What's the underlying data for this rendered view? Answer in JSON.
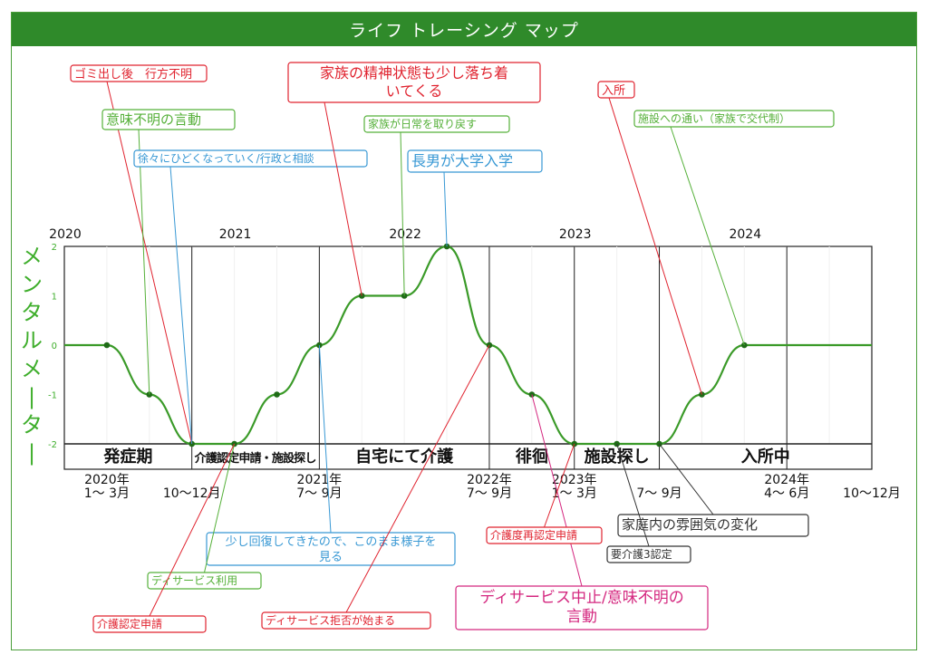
{
  "title": "ライフ トレーシング マップ",
  "colors": {
    "title_bg": "#2f8a2a",
    "series": "#3a9a28",
    "red": "#e0232f",
    "green": "#55b039",
    "blue": "#3898d4",
    "magenta": "#d4277f",
    "dark": "#333333"
  },
  "chart_data": {
    "type": "line",
    "ylabel": "メンタルメーター",
    "ylim": [
      -2,
      2
    ],
    "yticks": [
      2,
      1,
      0,
      -1,
      -2
    ],
    "xlim": [
      0,
      19
    ],
    "years": [
      {
        "label": "2020",
        "x": 0
      },
      {
        "label": "2021",
        "x": 4
      },
      {
        "label": "2022",
        "x": 8
      },
      {
        "label": "2023",
        "x": 12
      },
      {
        "label": "2024",
        "x": 16
      }
    ],
    "year_dividers": [
      3,
      6,
      10,
      12,
      14,
      17
    ],
    "x_tick_labels": [
      {
        "x": 1,
        "lines": [
          "2020年",
          "1～ 3月"
        ]
      },
      {
        "x": 3,
        "lines": [
          "",
          "10～12月"
        ]
      },
      {
        "x": 6,
        "lines": [
          "2021年",
          "7～ 9月"
        ]
      },
      {
        "x": 10,
        "lines": [
          "2022年",
          "7～ 9月"
        ]
      },
      {
        "x": 12,
        "lines": [
          "2023年",
          "1～ 3月"
        ]
      },
      {
        "x": 14,
        "lines": [
          "",
          "7～ 9月"
        ]
      },
      {
        "x": 17,
        "lines": [
          "2024年",
          "4～ 6月"
        ]
      },
      {
        "x": 19,
        "lines": [
          "",
          "10～12月"
        ]
      }
    ],
    "phases": [
      {
        "label": "発症期",
        "from": 0,
        "to": 3
      },
      {
        "label": "介護認定申請・施設探し",
        "from": 3,
        "to": 6
      },
      {
        "label": "自宅にて介護",
        "from": 6,
        "to": 10
      },
      {
        "label": "徘徊",
        "from": 10,
        "to": 12
      },
      {
        "label": "施設探し",
        "from": 12,
        "to": 14
      },
      {
        "label": "入所中",
        "from": 14,
        "to": 19
      }
    ],
    "points": [
      {
        "x": 0,
        "y": 0,
        "marker": false
      },
      {
        "x": 1,
        "y": 0
      },
      {
        "x": 2,
        "y": -1
      },
      {
        "x": 3,
        "y": -2
      },
      {
        "x": 4,
        "y": -2
      },
      {
        "x": 5,
        "y": -1
      },
      {
        "x": 6,
        "y": 0
      },
      {
        "x": 7,
        "y": 1
      },
      {
        "x": 8,
        "y": 1
      },
      {
        "x": 9,
        "y": 2
      },
      {
        "x": 10,
        "y": 0
      },
      {
        "x": 11,
        "y": -1
      },
      {
        "x": 12,
        "y": -2
      },
      {
        "x": 13,
        "y": -2
      },
      {
        "x": 14,
        "y": -2
      },
      {
        "x": 15,
        "y": -1
      },
      {
        "x": 16,
        "y": 0
      },
      {
        "x": 17,
        "y": 0,
        "marker": false
      },
      {
        "x": 18,
        "y": 0,
        "marker": false
      },
      {
        "x": 19,
        "y": 0,
        "marker": false
      }
    ],
    "annotations": [
      {
        "text": "ゴミ出し後　行方不明",
        "color": "red",
        "x": 3,
        "y": -2
      },
      {
        "text": "意味不明の言動",
        "color": "green",
        "x": 2,
        "y": -1
      },
      {
        "text": "徐々にひどくなっていく/行政と相談",
        "color": "blue",
        "x": 3,
        "y": -2
      },
      {
        "text": "家族の精神状態も少し落ち着\nいてくる",
        "color": "red",
        "x": 7,
        "y": 1
      },
      {
        "text": "家族が日常を取り戻す",
        "color": "green",
        "x": 8,
        "y": 1
      },
      {
        "text": "長男が大学入学",
        "color": "blue",
        "x": 9,
        "y": 2
      },
      {
        "text": "入所",
        "color": "red",
        "x": 15,
        "y": -1
      },
      {
        "text": "施設への通い（家族で交代制）",
        "color": "green",
        "x": 16,
        "y": 0
      },
      {
        "text": "少し回復してきたので、このまま様子を\n見る",
        "color": "blue",
        "x": 6,
        "y": 0
      },
      {
        "text": "ディサービス利用",
        "color": "green",
        "x": 4,
        "y": -2
      },
      {
        "text": "介護認定申請",
        "color": "red",
        "x": 4,
        "y": -2
      },
      {
        "text": "ディサービス拒否が始まる",
        "color": "red",
        "x": 10,
        "y": 0
      },
      {
        "text": "ディサービス中止/意味不明の\n言動",
        "color": "magenta",
        "x": 11,
        "y": -1
      },
      {
        "text": "介護度再認定申請",
        "color": "red",
        "x": 12,
        "y": -2
      },
      {
        "text": "家庭内の雰囲気の変化",
        "color": "dark",
        "x": 14,
        "y": -2
      },
      {
        "text": "要介護3認定",
        "color": "dark",
        "x": 13,
        "y": -2
      }
    ]
  }
}
